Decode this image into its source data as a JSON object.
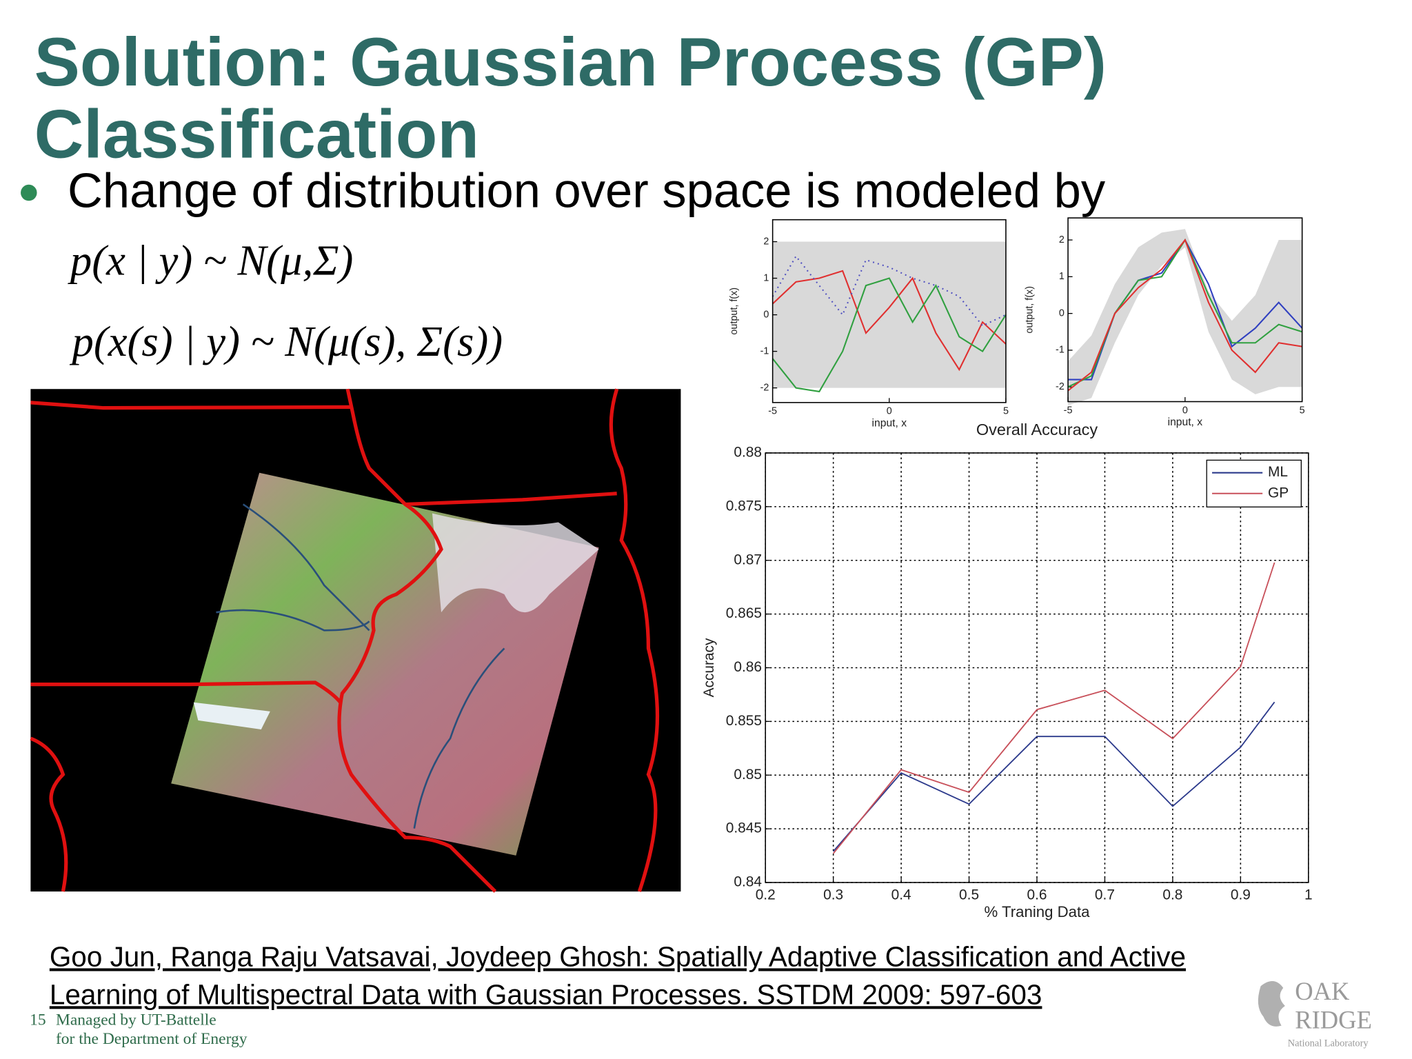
{
  "title_lines": [
    "Solution: Gaussian Process (GP)",
    "Classification"
  ],
  "bullet": "Change of distribution over space is modeled by",
  "equations": [
    "p(x | y) ~ N(μ,Σ)",
    "p(x(s) | y) ~ N(μ(s), Σ(s))"
  ],
  "chart_data": [
    {
      "type": "line",
      "title": "Overall Accuracy",
      "x_label": "% Traning Data",
      "y_label": "Accuracy",
      "x": [
        0.3,
        0.4,
        0.5,
        0.6,
        0.7,
        0.8,
        0.9,
        0.95
      ],
      "series": [
        {
          "name": "ML",
          "color": "#2c3a8c",
          "values": [
            0.8429,
            0.8502,
            0.8473,
            0.8536,
            0.8536,
            0.8471,
            0.8526,
            0.8568
          ]
        },
        {
          "name": "GP",
          "color": "#c8505a",
          "values": [
            0.8427,
            0.8505,
            0.8484,
            0.8561,
            0.8579,
            0.8534,
            0.8601,
            0.8698
          ]
        }
      ],
      "xlim": [
        0.2,
        1
      ],
      "ylim": [
        0.84,
        0.88
      ],
      "xticks": [
        0.2,
        0.3,
        0.4,
        0.5,
        0.6,
        0.7,
        0.8,
        0.9,
        1
      ],
      "yticks": [
        0.84,
        0.845,
        0.85,
        0.855,
        0.86,
        0.865,
        0.87,
        0.875,
        0.88
      ],
      "grid": true,
      "legend": "upper right"
    },
    {
      "type": "line",
      "x_label": "input, x",
      "y_label": "output, f(x)",
      "x": [
        -5,
        -4,
        -3,
        -2,
        -1,
        0,
        1,
        2,
        3,
        4,
        5
      ],
      "band_upper": [
        2,
        2,
        2,
        2,
        2,
        2,
        2,
        2,
        2,
        2,
        2
      ],
      "band_lower": [
        -2,
        -2,
        -2,
        -2,
        -2,
        -2,
        -2,
        -2,
        -2,
        -2,
        -2
      ],
      "band_color": "#d9d9d9",
      "series": [
        {
          "color": "#e03030",
          "values": [
            0.3,
            0.9,
            1.0,
            1.2,
            -0.5,
            0.2,
            1.0,
            -0.5,
            -1.5,
            -0.2,
            -0.8
          ]
        },
        {
          "color": "#30a040",
          "values": [
            -1.2,
            -2.0,
            -2.1,
            -1.0,
            0.8,
            1.0,
            -0.2,
            0.8,
            -0.6,
            -1.0,
            0.0
          ]
        },
        {
          "color": "#5050c0",
          "style": "dotted",
          "values": [
            0.5,
            1.6,
            0.8,
            0.0,
            1.5,
            1.3,
            1.0,
            0.8,
            0.5,
            -0.3,
            0.0
          ]
        }
      ],
      "xlim": [
        -5,
        5
      ],
      "ylim": [
        -2.4,
        2.6
      ],
      "xticks": [
        -5,
        0,
        5
      ],
      "yticks": [
        -2,
        -1,
        0,
        1,
        2
      ]
    },
    {
      "type": "line",
      "x_label": "input, x",
      "y_label": "output, f(x)",
      "x": [
        -5,
        -4,
        -3,
        -2,
        -1,
        0,
        1,
        2,
        3,
        4,
        5
      ],
      "band_upper": [
        -1.3,
        -0.6,
        0.8,
        1.8,
        2.2,
        2.3,
        0.6,
        -0.2,
        0.5,
        2.0,
        2.0
      ],
      "band_lower": [
        -2.5,
        -2.3,
        -0.8,
        0.5,
        1.3,
        1.8,
        -0.5,
        -1.8,
        -2.2,
        -2.0,
        -2.0
      ],
      "band_color": "#d9d9d9",
      "series": [
        {
          "color": "#3040c0",
          "values": [
            -1.8,
            -1.8,
            0.0,
            0.9,
            1.1,
            2.0,
            0.8,
            -0.9,
            -0.4,
            0.3,
            -0.4
          ]
        },
        {
          "color": "#30a040",
          "values": [
            -2.0,
            -1.7,
            0.0,
            0.9,
            1.0,
            2.0,
            0.5,
            -0.8,
            -0.8,
            -0.3,
            -0.5
          ]
        },
        {
          "color": "#e03030",
          "values": [
            -2.1,
            -1.6,
            0.0,
            0.7,
            1.2,
            2.0,
            0.3,
            -1.0,
            -1.6,
            -0.8,
            -0.9
          ]
        }
      ],
      "xlim": [
        -5,
        5
      ],
      "ylim": [
        -2.4,
        2.6
      ],
      "xticks": [
        -5,
        0,
        5
      ],
      "yticks": [
        -2,
        -1,
        0,
        1,
        2
      ]
    }
  ],
  "citation_lines": [
    "Goo Jun, Ranga Raju Vatsavai, Joydeep Ghosh: Spatially Adaptive Classification and Active",
    "Learning of Multispectral Data with Gaussian Processes. SSTDM 2009: 597-603"
  ],
  "footer": {
    "page": "15",
    "lines": [
      "Managed by UT-Battelle",
      "for the Department of Energy"
    ]
  },
  "logo": [
    "OAK",
    "RIDGE",
    "National Laboratory"
  ]
}
